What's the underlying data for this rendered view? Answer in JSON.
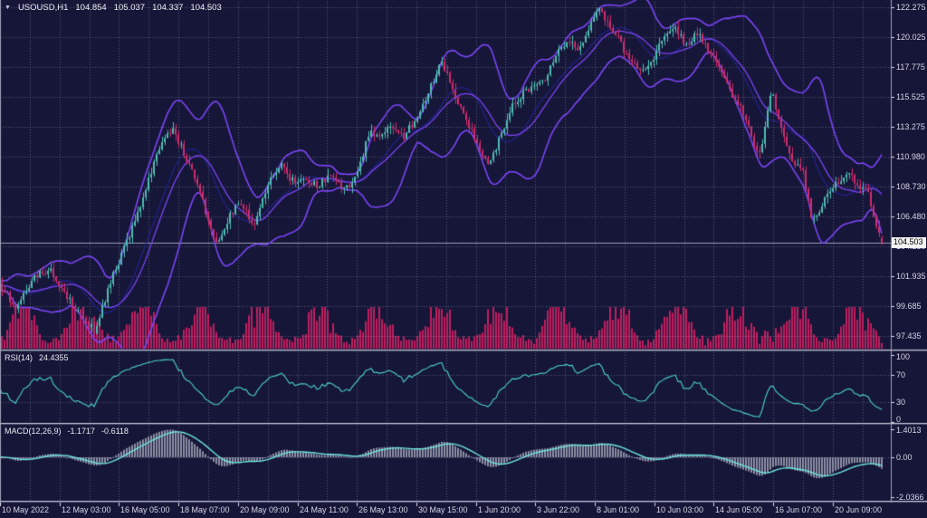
{
  "window": {
    "symbol_title": "USOUSD,H1",
    "ohlc": {
      "open": "104.854",
      "high": "105.037",
      "low": "104.337",
      "close": "104.503"
    }
  },
  "indicators": {
    "rsi": {
      "label": "RSI(14)",
      "value": "24.4355"
    },
    "macd": {
      "label": "MACD(12,26,9)",
      "value": "-1.1717",
      "signal": "-0.6118"
    }
  },
  "axes": {
    "price_ticks": [
      "122.275",
      "120.025",
      "117.775",
      "115.525",
      "113.275",
      "110.980",
      "108.730",
      "106.480",
      "104.230",
      "101.935",
      "99.685",
      "97.435"
    ],
    "rsi_ticks": [
      "100",
      "70",
      "30",
      "0"
    ],
    "macd_ticks": [
      "1.4013",
      "0.00",
      "-2.0366"
    ],
    "time_ticks": [
      "10 May 2022",
      "12 May 03:00",
      "16 May 05:00",
      "18 May 07:00",
      "20 May 09:00",
      "24 May 11:00",
      "26 May 13:00",
      "30 May 15:00",
      "1 Jun 20:00",
      "3 Jun 22:00",
      "8 Jun 01:00",
      "10 Jun 03:00",
      "14 Jun 05:00",
      "16 Jun 07:00",
      "20 Jun 09:00"
    ],
    "current_price": "104.503"
  },
  "colors": {
    "background": "#161638",
    "grid": "#a5a8be",
    "candle_up": "#4fbdb2",
    "candle_down": "#cf2d6d",
    "bollinger": "#7c45f5",
    "ma_slow": "#23238a",
    "volume": "#c01e5f",
    "rsi_line": "#4cd3cc",
    "macd_histogram": "#8c8fa4",
    "macd_signal": "#6ee8de",
    "separator_light": "#c6c9da",
    "separator_dark": "#4a4d6a",
    "axis_line": "#9fa3b8",
    "axis_text": "#d6d8e6",
    "bid_line": "#b4b8c8",
    "price_label_bg": "#f2f2f2",
    "price_label_text": "#000000"
  },
  "chart_data": {
    "type": "candlestick",
    "title": "USOUSD,H1",
    "symbol": "USOUSD",
    "timeframe": "H1",
    "x_range": [
      "10 May 2022",
      "20 Jun 09:00"
    ],
    "y_ticks": [
      122.275,
      120.025,
      117.775,
      115.525,
      113.275,
      110.98,
      108.73,
      106.48,
      104.23,
      101.935,
      99.685,
      97.435
    ],
    "current_price": 104.503,
    "last_candle": {
      "open": 104.854,
      "high": 105.037,
      "low": 104.337,
      "close": 104.503
    },
    "overlays": [
      "Bollinger Bands",
      "Moving Average"
    ],
    "panes": [
      {
        "name": "volume",
        "style": "histogram"
      },
      {
        "name": "RSI(14)",
        "last": 24.4355,
        "range": [
          0,
          100
        ],
        "levels": [
          70,
          30
        ]
      },
      {
        "name": "MACD(12,26,9)",
        "last_macd": -1.1717,
        "last_signal": -0.6118,
        "range": [
          -2.0366,
          1.4013
        ]
      }
    ],
    "price_path": [
      [
        0,
        101.2
      ],
      [
        18,
        99.6
      ],
      [
        38,
        101.8
      ],
      [
        55,
        102.6
      ],
      [
        70,
        100.8
      ],
      [
        88,
        99.0
      ],
      [
        105,
        97.8
      ],
      [
        122,
        101.5
      ],
      [
        140,
        104.5
      ],
      [
        158,
        108.0
      ],
      [
        175,
        111.5
      ],
      [
        190,
        113.2
      ],
      [
        205,
        111.0
      ],
      [
        220,
        108.5
      ],
      [
        238,
        104.2
      ],
      [
        252,
        106.3
      ],
      [
        265,
        107.6
      ],
      [
        280,
        105.8
      ],
      [
        295,
        108.8
      ],
      [
        310,
        110.3
      ],
      [
        322,
        109.2
      ],
      [
        335,
        109.2
      ],
      [
        350,
        108.8
      ],
      [
        365,
        109.5
      ],
      [
        378,
        108.6
      ],
      [
        390,
        109.0
      ],
      [
        398,
        110.5
      ],
      [
        408,
        113.0
      ],
      [
        420,
        112.3
      ],
      [
        432,
        113.5
      ],
      [
        445,
        112.5
      ],
      [
        458,
        113.8
      ],
      [
        470,
        115.5
      ],
      [
        480,
        117.0
      ],
      [
        488,
        118.2
      ],
      [
        496,
        116.8
      ],
      [
        512,
        114.2
      ],
      [
        526,
        112.3
      ],
      [
        540,
        110.2
      ],
      [
        552,
        112.5
      ],
      [
        565,
        114.8
      ],
      [
        578,
        115.8
      ],
      [
        590,
        116.2
      ],
      [
        602,
        117.0
      ],
      [
        615,
        118.9
      ],
      [
        628,
        119.9
      ],
      [
        640,
        119.2
      ],
      [
        652,
        121.0
      ],
      [
        662,
        122.0
      ],
      [
        672,
        121.2
      ],
      [
        685,
        119.6
      ],
      [
        698,
        118.0
      ],
      [
        710,
        117.4
      ],
      [
        722,
        118.6
      ],
      [
        735,
        120.1
      ],
      [
        748,
        120.6
      ],
      [
        758,
        119.4
      ],
      [
        770,
        120.4
      ],
      [
        782,
        119.2
      ],
      [
        795,
        117.5
      ],
      [
        806,
        116.0
      ],
      [
        818,
        114.6
      ],
      [
        828,
        113.0
      ],
      [
        838,
        110.9
      ],
      [
        846,
        113.5
      ],
      [
        852,
        116.0
      ],
      [
        860,
        114.0
      ],
      [
        870,
        111.3
      ],
      [
        880,
        110.3
      ],
      [
        888,
        109.6
      ],
      [
        896,
        106.4
      ],
      [
        904,
        106.9
      ],
      [
        916,
        108.2
      ],
      [
        928,
        109.3
      ],
      [
        938,
        109.6
      ],
      [
        950,
        108.7
      ],
      [
        958,
        108.3
      ],
      [
        966,
        106.4
      ],
      [
        974,
        104.5
      ]
    ]
  }
}
